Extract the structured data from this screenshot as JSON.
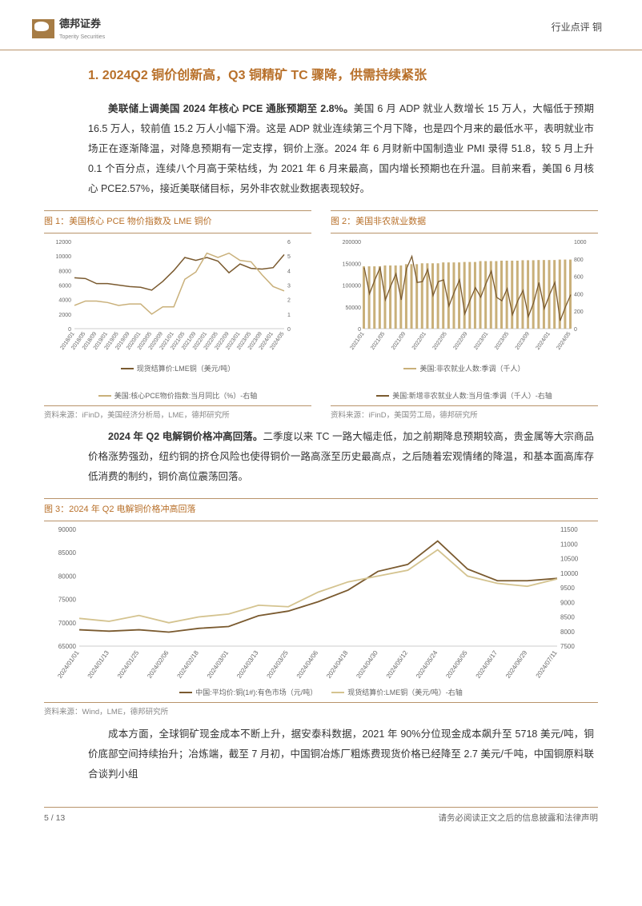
{
  "header": {
    "logo_text": "德邦证券",
    "logo_sub": "Toperity Securities",
    "right_text": "行业点评    铜"
  },
  "section_title": "1. 2024Q2 铜价创新高，Q3 铜精矿 TC 骤降，供需持续紧张",
  "para1_bold": "美联储上调美国 2024 年核心 PCE 通胀预期至 2.8%。",
  "para1_rest": "美国 6 月 ADP 就业人数增长 15 万人，大幅低于预期 16.5 万人，较前值 15.2 万人小幅下滑。这是 ADP 就业连续第三个月下降，也是四个月来的最低水平，表明就业市场正在逐渐降温，对降息预期有一定支撑，铜价上涨。2024 年 6 月财新中国制造业 PMI 录得 51.8，较 5 月上升 0.1 个百分点，连续八个月高于荣枯线，为 2021 年 6 月来最高，国内增长预期也在升温。目前来看，美国 6 月核心 PCE2.57%，接近美联储目标，另外非农就业数据表现较好。",
  "chart1": {
    "title": "图 1：美国核心 PCE 物价指数及 LME 铜价",
    "type": "line-dual-axis",
    "x_labels": [
      "2018/01",
      "2018/05",
      "2018/09",
      "2019/01",
      "2019/05",
      "2019/09",
      "2020/01",
      "2020/05",
      "2020/09",
      "2021/01",
      "2021/05",
      "2021/09",
      "2022/01",
      "2022/05",
      "2022/09",
      "2023/01",
      "2023/05",
      "2023/09",
      "2024/01",
      "2024/05"
    ],
    "y1_min": 0,
    "y1_max": 12000,
    "y1_step": 2000,
    "y2_min": 0,
    "y2_max": 6,
    "y2_step": 1,
    "series1": {
      "name": "现货结算价:LME铜（美元/吨）",
      "color": "#7a5a2f",
      "data": [
        7000,
        6900,
        6200,
        6200,
        6000,
        5800,
        5700,
        5300,
        6500,
        8000,
        9800,
        9400,
        9800,
        9300,
        7700,
        8900,
        8300,
        8200,
        8400,
        10200
      ]
    },
    "series2": {
      "name": "美国:核心PCE物价指数:当月同比（%）-右轴",
      "color": "#c9b07a",
      "data": [
        1.6,
        1.9,
        1.9,
        1.8,
        1.6,
        1.7,
        1.7,
        1.0,
        1.5,
        1.5,
        3.4,
        3.9,
        5.2,
        4.9,
        5.2,
        4.7,
        4.6,
        3.7,
        2.9,
        2.6
      ]
    },
    "source": "资料来源：iFinD，美国经济分析局，LME，德邦研究所",
    "axis_color": "#999999",
    "grid_color": "#e0e0e0",
    "label_fontsize": 7
  },
  "chart2": {
    "title": "图 2：美国非农就业数据",
    "type": "bar-line-dual-axis",
    "x_labels": [
      "2021/01",
      "2021/05",
      "2021/09",
      "2022/01",
      "2022/05",
      "2022/09",
      "2023/01",
      "2023/05",
      "2023/09",
      "2024/01",
      "2024/05"
    ],
    "y1_min": 0,
    "y1_max": 200000,
    "y1_step": 50000,
    "y2_min": 0,
    "y2_max": 1000,
    "y2_step": 200,
    "bar_series": {
      "name": "美国:非农就业人数:季调（千人）",
      "color": "#c9b07a",
      "data": [
        143000,
        145000,
        148000,
        150000,
        152000,
        153000,
        155000,
        156000,
        157000,
        157500,
        158500
      ]
    },
    "line_series": {
      "name": "美国:新增非农就业人数:当月值:季调（千人）-右轴",
      "color": "#7a5a2f",
      "data": [
        520,
        450,
        650,
        500,
        380,
        290,
        480,
        280,
        260,
        350,
        210
      ]
    },
    "source": "资料来源：iFinD，美国劳工局，德邦研究所",
    "axis_color": "#999999",
    "grid_color": "#e0e0e0",
    "label_fontsize": 7
  },
  "para2_bold": "2024 年 Q2 电解铜价格冲高回落。",
  "para2_rest": "二季度以来 TC 一路大幅走低，加之前期降息预期较高，贵金属等大宗商品价格涨势强劲，纽约铜的挤仓风险也使得铜价一路高涨至历史最高点，之后随着宏观情绪的降温，和基本面高库存低消费的制约，铜价高位震荡回落。",
  "chart3": {
    "title": "图 3：2024 年 Q2 电解铜价格冲高回落",
    "type": "line-dual-axis",
    "x_labels": [
      "2024/01/01",
      "2024/01/13",
      "2024/01/25",
      "2024/02/06",
      "2024/02/18",
      "2024/03/01",
      "2024/03/13",
      "2024/03/25",
      "2024/04/06",
      "2024/04/18",
      "2024/04/30",
      "2024/05/12",
      "2024/05/24",
      "2024/06/05",
      "2024/06/17",
      "2024/06/29",
      "2024/07/11"
    ],
    "y1_min": 65000,
    "y1_max": 90000,
    "y1_step": 5000,
    "y2_min": 7500,
    "y2_max": 11500,
    "y2_step": 500,
    "series1": {
      "name": "中国:平均价:铜(1#):有色市场（元/吨）",
      "color": "#7a5a2f",
      "data": [
        68500,
        68200,
        68500,
        68000,
        68800,
        69200,
        71500,
        72500,
        74500,
        77000,
        81000,
        82500,
        87500,
        81500,
        79000,
        79000,
        79500
      ]
    },
    "series2": {
      "name": "现货结算价:LME铜（美元/吨）-右轴",
      "color": "#d4c38f",
      "data": [
        8450,
        8350,
        8550,
        8300,
        8500,
        8600,
        8900,
        8850,
        9350,
        9700,
        9900,
        10100,
        10800,
        9900,
        9650,
        9550,
        9800
      ]
    },
    "source": "资料来源：Wind，LME，德邦研究所",
    "axis_color": "#999999",
    "grid_color": "#e0e0e0",
    "label_fontsize": 8
  },
  "para3": "成本方面，全球铜矿现金成本不断上升，据安泰科数据，2021 年 90%分位现金成本飙升至 5718 美元/吨，铜价底部空间持续抬升；冶炼端，截至 7 月初，中国铜冶炼厂粗炼费现货价格已经降至 2.7 美元/千吨，中国铜原料联合谈判小组",
  "footer": {
    "page": "5 / 13",
    "disclaimer": "请务必阅读正文之后的信息披露和法律声明"
  },
  "colors": {
    "accent": "#b8702a",
    "border": "#b8936a",
    "dark_line": "#7a5a2f",
    "light_line": "#c9b07a"
  }
}
